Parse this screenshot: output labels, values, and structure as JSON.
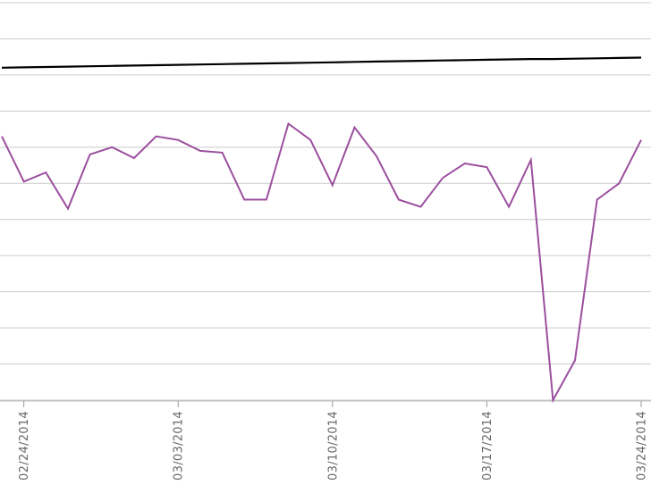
{
  "chart_data": {
    "type": "line",
    "title": "",
    "xlabel": "",
    "ylabel": "",
    "x_range": [
      "02/23/2014",
      "03/24/2014"
    ],
    "y_range": [
      0,
      11
    ],
    "grid": true,
    "legend": "none",
    "x_tick_labels": [
      "02/24/2014",
      "03/03/2014",
      "03/10/2014",
      "03/17/2014",
      "03/24/2014"
    ],
    "x": [
      "02/23/2014",
      "02/24/2014",
      "02/25/2014",
      "02/26/2014",
      "02/27/2014",
      "02/28/2014",
      "03/01/2014",
      "03/02/2014",
      "03/03/2014",
      "03/04/2014",
      "03/05/2014",
      "03/06/2014",
      "03/07/2014",
      "03/08/2014",
      "03/09/2014",
      "03/10/2014",
      "03/11/2014",
      "03/12/2014",
      "03/13/2014",
      "03/14/2014",
      "03/15/2014",
      "03/16/2014",
      "03/17/2014",
      "03/18/2014",
      "03/19/2014",
      "03/20/2014",
      "03/21/2014",
      "03/22/2014",
      "03/23/2014",
      "03/24/2014"
    ],
    "series": [
      {
        "color": "#000000",
        "values": [
          9.2,
          9.21,
          9.22,
          9.23,
          9.24,
          9.25,
          9.26,
          9.27,
          9.28,
          9.29,
          9.3,
          9.31,
          9.32,
          9.33,
          9.34,
          9.35,
          9.36,
          9.37,
          9.38,
          9.39,
          9.4,
          9.41,
          9.42,
          9.43,
          9.44,
          9.44,
          9.45,
          9.46,
          9.47,
          9.48
        ]
      },
      {
        "color": "#9b4f9e",
        "values": [
          7.3,
          6.05,
          6.3,
          5.3,
          6.8,
          7.0,
          6.7,
          7.3,
          7.2,
          6.9,
          6.85,
          5.55,
          5.55,
          7.65,
          7.2,
          5.95,
          7.55,
          6.75,
          5.55,
          5.35,
          6.15,
          6.55,
          6.45,
          5.35,
          6.65,
          0.0,
          1.1,
          5.55,
          6.0,
          7.2
        ]
      }
    ]
  }
}
